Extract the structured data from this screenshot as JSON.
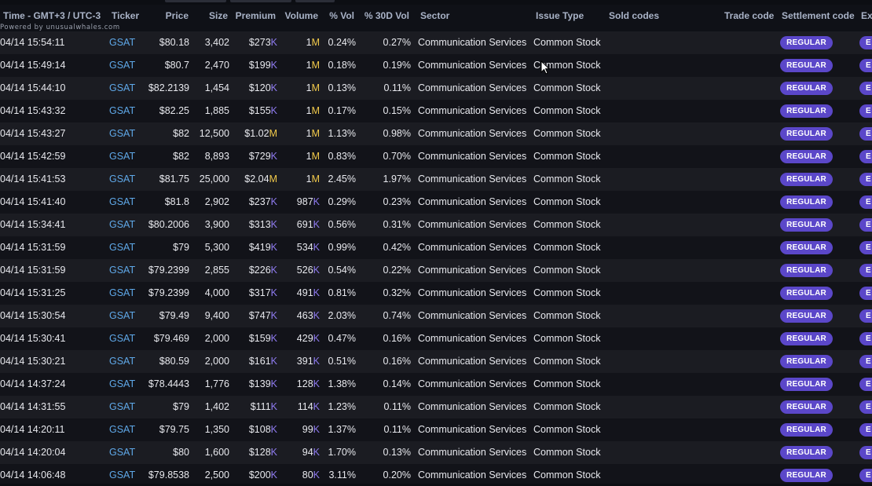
{
  "header": {
    "time": "Time - GMT+3 / UTC-3",
    "ticker": "Ticker",
    "price": "Price",
    "size": "Size",
    "premium": "Premium",
    "volume": "Volume",
    "pct_vol": "% Vol",
    "pct_30d_vol": "% 30D Vol",
    "sector": "Sector",
    "issue_type": "Issue Type",
    "sold_codes": "Sold codes",
    "trade_code": "Trade code",
    "settlement_code": "Settlement code",
    "ex": "Ex",
    "powered_by": "Powered by unusualwhales.com"
  },
  "rows": [
    {
      "time": "04/14 15:54:11",
      "ticker": "GSAT",
      "price": "$80.18",
      "size": "3,402",
      "premium": "$273",
      "premium_suffix": "K",
      "volume": "1",
      "volume_suffix": "M",
      "pct_vol": "0.24%",
      "pct_30d_vol": "0.27%",
      "sector": "Communication Services",
      "issue_type": "Common Stock",
      "settlement": "REGULAR",
      "ex": "E"
    },
    {
      "time": "04/14 15:49:14",
      "ticker": "GSAT",
      "price": "$80.7",
      "size": "2,470",
      "premium": "$199",
      "premium_suffix": "K",
      "volume": "1",
      "volume_suffix": "M",
      "pct_vol": "0.18%",
      "pct_30d_vol": "0.19%",
      "sector": "Communication Services",
      "issue_type": "Common Stock",
      "settlement": "REGULAR",
      "ex": "E"
    },
    {
      "time": "04/14 15:44:10",
      "ticker": "GSAT",
      "price": "$82.2139",
      "size": "1,454",
      "premium": "$120",
      "premium_suffix": "K",
      "volume": "1",
      "volume_suffix": "M",
      "pct_vol": "0.13%",
      "pct_30d_vol": "0.11%",
      "sector": "Communication Services",
      "issue_type": "Common Stock",
      "settlement": "REGULAR",
      "ex": "E"
    },
    {
      "time": "04/14 15:43:32",
      "ticker": "GSAT",
      "price": "$82.25",
      "size": "1,885",
      "premium": "$155",
      "premium_suffix": "K",
      "volume": "1",
      "volume_suffix": "M",
      "pct_vol": "0.17%",
      "pct_30d_vol": "0.15%",
      "sector": "Communication Services",
      "issue_type": "Common Stock",
      "settlement": "REGULAR",
      "ex": "E"
    },
    {
      "time": "04/14 15:43:27",
      "ticker": "GSAT",
      "price": "$82",
      "size": "12,500",
      "premium": "$1.02",
      "premium_suffix": "M",
      "volume": "1",
      "volume_suffix": "M",
      "pct_vol": "1.13%",
      "pct_30d_vol": "0.98%",
      "sector": "Communication Services",
      "issue_type": "Common Stock",
      "settlement": "REGULAR",
      "ex": "E"
    },
    {
      "time": "04/14 15:42:59",
      "ticker": "GSAT",
      "price": "$82",
      "size": "8,893",
      "premium": "$729",
      "premium_suffix": "K",
      "volume": "1",
      "volume_suffix": "M",
      "pct_vol": "0.83%",
      "pct_30d_vol": "0.70%",
      "sector": "Communication Services",
      "issue_type": "Common Stock",
      "settlement": "REGULAR",
      "ex": "E"
    },
    {
      "time": "04/14 15:41:53",
      "ticker": "GSAT",
      "price": "$81.75",
      "size": "25,000",
      "premium": "$2.04",
      "premium_suffix": "M",
      "volume": "1",
      "volume_suffix": "M",
      "pct_vol": "2.45%",
      "pct_30d_vol": "1.97%",
      "sector": "Communication Services",
      "issue_type": "Common Stock",
      "settlement": "REGULAR",
      "ex": "E"
    },
    {
      "time": "04/14 15:41:40",
      "ticker": "GSAT",
      "price": "$81.8",
      "size": "2,902",
      "premium": "$237",
      "premium_suffix": "K",
      "volume": "987",
      "volume_suffix": "K",
      "pct_vol": "0.29%",
      "pct_30d_vol": "0.23%",
      "sector": "Communication Services",
      "issue_type": "Common Stock",
      "settlement": "REGULAR",
      "ex": "E"
    },
    {
      "time": "04/14 15:34:41",
      "ticker": "GSAT",
      "price": "$80.2006",
      "size": "3,900",
      "premium": "$313",
      "premium_suffix": "K",
      "volume": "691",
      "volume_suffix": "K",
      "pct_vol": "0.56%",
      "pct_30d_vol": "0.31%",
      "sector": "Communication Services",
      "issue_type": "Common Stock",
      "settlement": "REGULAR",
      "ex": "E"
    },
    {
      "time": "04/14 15:31:59",
      "ticker": "GSAT",
      "price": "$79",
      "size": "5,300",
      "premium": "$419",
      "premium_suffix": "K",
      "volume": "534",
      "volume_suffix": "K",
      "pct_vol": "0.99%",
      "pct_30d_vol": "0.42%",
      "sector": "Communication Services",
      "issue_type": "Common Stock",
      "settlement": "REGULAR",
      "ex": "E"
    },
    {
      "time": "04/14 15:31:59",
      "ticker": "GSAT",
      "price": "$79.2399",
      "size": "2,855",
      "premium": "$226",
      "premium_suffix": "K",
      "volume": "526",
      "volume_suffix": "K",
      "pct_vol": "0.54%",
      "pct_30d_vol": "0.22%",
      "sector": "Communication Services",
      "issue_type": "Common Stock",
      "settlement": "REGULAR",
      "ex": "E"
    },
    {
      "time": "04/14 15:31:25",
      "ticker": "GSAT",
      "price": "$79.2399",
      "size": "4,000",
      "premium": "$317",
      "premium_suffix": "K",
      "volume": "491",
      "volume_suffix": "K",
      "pct_vol": "0.81%",
      "pct_30d_vol": "0.32%",
      "sector": "Communication Services",
      "issue_type": "Common Stock",
      "settlement": "REGULAR",
      "ex": "E"
    },
    {
      "time": "04/14 15:30:54",
      "ticker": "GSAT",
      "price": "$79.49",
      "size": "9,400",
      "premium": "$747",
      "premium_suffix": "K",
      "volume": "463",
      "volume_suffix": "K",
      "pct_vol": "2.03%",
      "pct_30d_vol": "0.74%",
      "sector": "Communication Services",
      "issue_type": "Common Stock",
      "settlement": "REGULAR",
      "ex": "E"
    },
    {
      "time": "04/14 15:30:41",
      "ticker": "GSAT",
      "price": "$79.469",
      "size": "2,000",
      "premium": "$159",
      "premium_suffix": "K",
      "volume": "429",
      "volume_suffix": "K",
      "pct_vol": "0.47%",
      "pct_30d_vol": "0.16%",
      "sector": "Communication Services",
      "issue_type": "Common Stock",
      "settlement": "REGULAR",
      "ex": "E"
    },
    {
      "time": "04/14 15:30:21",
      "ticker": "GSAT",
      "price": "$80.59",
      "size": "2,000",
      "premium": "$161",
      "premium_suffix": "K",
      "volume": "391",
      "volume_suffix": "K",
      "pct_vol": "0.51%",
      "pct_30d_vol": "0.16%",
      "sector": "Communication Services",
      "issue_type": "Common Stock",
      "settlement": "REGULAR",
      "ex": "E"
    },
    {
      "time": "04/14 14:37:24",
      "ticker": "GSAT",
      "price": "$78.4443",
      "size": "1,776",
      "premium": "$139",
      "premium_suffix": "K",
      "volume": "128",
      "volume_suffix": "K",
      "pct_vol": "1.38%",
      "pct_30d_vol": "0.14%",
      "sector": "Communication Services",
      "issue_type": "Common Stock",
      "settlement": "REGULAR",
      "ex": "E"
    },
    {
      "time": "04/14 14:31:55",
      "ticker": "GSAT",
      "price": "$79",
      "size": "1,402",
      "premium": "$111",
      "premium_suffix": "K",
      "volume": "114",
      "volume_suffix": "K",
      "pct_vol": "1.23%",
      "pct_30d_vol": "0.11%",
      "sector": "Communication Services",
      "issue_type": "Common Stock",
      "settlement": "REGULAR",
      "ex": "E"
    },
    {
      "time": "04/14 14:20:11",
      "ticker": "GSAT",
      "price": "$79.75",
      "size": "1,350",
      "premium": "$108",
      "premium_suffix": "K",
      "volume": "99",
      "volume_suffix": "K",
      "pct_vol": "1.37%",
      "pct_30d_vol": "0.11%",
      "sector": "Communication Services",
      "issue_type": "Common Stock",
      "settlement": "REGULAR",
      "ex": "E"
    },
    {
      "time": "04/14 14:20:04",
      "ticker": "GSAT",
      "price": "$80",
      "size": "1,600",
      "premium": "$128",
      "premium_suffix": "K",
      "volume": "94",
      "volume_suffix": "K",
      "pct_vol": "1.70%",
      "pct_30d_vol": "0.13%",
      "sector": "Communication Services",
      "issue_type": "Common Stock",
      "settlement": "REGULAR",
      "ex": "E"
    },
    {
      "time": "04/14 14:06:48",
      "ticker": "GSAT",
      "price": "$79.8538",
      "size": "2,500",
      "premium": "$200",
      "premium_suffix": "K",
      "volume": "80",
      "volume_suffix": "K",
      "pct_vol": "3.11%",
      "pct_30d_vol": "0.20%",
      "sector": "Communication Services",
      "issue_type": "Common Stock",
      "settlement": "REGULAR",
      "ex": "E"
    }
  ],
  "colors": {
    "ticker": "#5fa8e8",
    "suffix_k": "#8f7bf0",
    "suffix_m": "#f1c94a",
    "badge": "#5b47c9"
  },
  "icons": {
    "cursor": "arrow-cursor-icon"
  }
}
